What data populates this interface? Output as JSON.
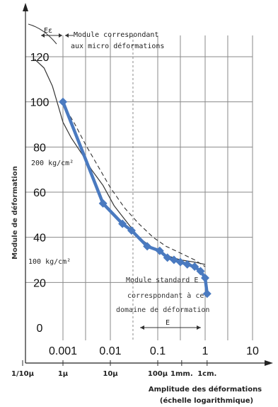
{
  "chart_data": {
    "type": "line",
    "ylabel": "Module de déformation",
    "xlabel": "Amplitude des déformations",
    "xlabel_sub": "(échelle logarithmique)",
    "x_scale": "log",
    "xlim": [
      0.001,
      10
    ],
    "ylim": [
      0,
      120
    ],
    "grid": true,
    "y_ticks": [
      0,
      20,
      40,
      60,
      80,
      100,
      120
    ],
    "x_ticks_top": [
      {
        "value": 0.001,
        "label": "0.001"
      },
      {
        "value": 0.01,
        "label": "0.01"
      },
      {
        "value": 0.1,
        "label": "0.1"
      },
      {
        "value": 1,
        "label": "1"
      },
      {
        "value": 10,
        "label": "10"
      }
    ],
    "x_ticks_bottom": [
      {
        "value": 0.0001,
        "label": "1/10µ"
      },
      {
        "value": 0.001,
        "label": "1µ"
      },
      {
        "value": 0.01,
        "label": "10µ"
      },
      {
        "value": 0.1,
        "label": "100µ"
      },
      {
        "value": 0.32,
        "label": "1mm."
      },
      {
        "value": 1.1,
        "label": "1cm."
      }
    ],
    "series": [
      {
        "color": "#4a7ac0",
        "style": "thick-diamond-markers",
        "x": [
          0.001,
          0.007,
          0.018,
          0.028,
          0.06,
          0.11,
          0.16,
          0.22,
          0.3,
          0.42,
          0.6,
          0.8,
          1.0,
          1.1
        ],
        "y": [
          100,
          55,
          46,
          43,
          36,
          34,
          31,
          30,
          29,
          28,
          27,
          25,
          22,
          15
        ]
      },
      {
        "color": "#333333",
        "style": "thin",
        "x": [
          0.00025,
          0.0004,
          0.0006,
          0.0008,
          0.001,
          0.0015,
          0.0025,
          0.004,
          0.007,
          0.012,
          0.02,
          0.04,
          0.08,
          0.15,
          0.3,
          0.6,
          1.0
        ],
        "y": [
          119,
          115,
          107,
          98,
          91,
          84,
          77,
          70,
          63,
          54,
          48,
          40,
          35,
          32,
          30,
          29,
          28
        ]
      },
      {
        "color": "#333333",
        "style": "dashed",
        "x": [
          0.001,
          0.0018,
          0.003,
          0.005,
          0.01,
          0.02,
          0.04,
          0.08,
          0.15,
          0.3,
          0.6,
          1.0
        ],
        "y": [
          99,
          90,
          81,
          73,
          62,
          53,
          46,
          40,
          36,
          33,
          30,
          27
        ]
      }
    ],
    "annotations": {
      "e_epsilon": "Eε",
      "micro_line1": "Module correspondant",
      "micro_line2": "aux micro déformations",
      "kg200": "200 kg/cm²",
      "kg100": "100 kg/cm²",
      "std_line1": "Module standard E",
      "std_line2": "correspondant à ce",
      "std_line3": "domaine de déformation",
      "e_label": "E"
    }
  }
}
